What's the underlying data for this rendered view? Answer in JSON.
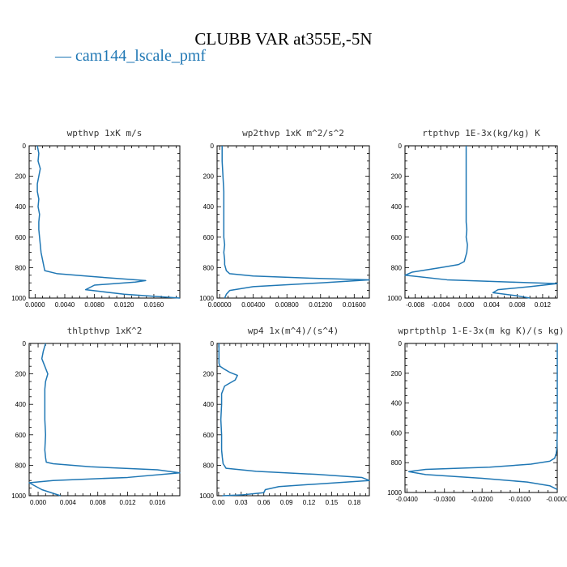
{
  "page": {
    "title": "CLUBB VAR at355E,-5N",
    "legend": "— cam144_lscale_pmf",
    "line_color": "#1f77b4"
  },
  "chart_data": [
    {
      "type": "line",
      "title": "wpthvp   1xK m/s",
      "xlim": [
        -0.0008,
        0.0195
      ],
      "ylim": [
        1000,
        0
      ],
      "xticks": [
        0.0,
        0.004,
        0.008,
        0.012,
        0.016
      ],
      "xtick_labels": [
        "0.0000",
        "0.0040",
        "0.0080",
        "0.0120",
        "0.0160"
      ],
      "yticks": [
        0,
        200,
        400,
        600,
        800,
        1000
      ],
      "ytick_labels": [
        "0",
        "200",
        "400",
        "600",
        "800",
        "1000"
      ],
      "series": [
        {
          "x": [
            0.0003,
            0.0005,
            0.0004,
            0.0007,
            0.0005,
            0.0003,
            0.0003,
            0.0005,
            0.0004,
            0.0006,
            0.0005,
            0.0005,
            0.0006,
            0.0008,
            0.0013,
            0.003,
            0.008,
            0.0149,
            0.0135,
            0.008,
            0.0068,
            0.012,
            0.0195
          ],
          "y": [
            0,
            50,
            100,
            150,
            200,
            250,
            300,
            350,
            400,
            450,
            500,
            550,
            600,
            700,
            820,
            840,
            860,
            885,
            895,
            915,
            945,
            975,
            1000
          ]
        }
      ]
    },
    {
      "type": "line",
      "title": "wp2thvp   1xK m^2/s^2",
      "xlim": [
        -0.0003,
        0.0178
      ],
      "ylim": [
        1000,
        0
      ],
      "xticks": [
        0.0,
        0.004,
        0.008,
        0.012,
        0.016
      ],
      "xtick_labels": [
        "0.00000",
        "0.00400",
        "0.00800",
        "0.01200",
        "0.01600"
      ],
      "yticks": [
        0,
        200,
        400,
        600,
        800,
        1000
      ],
      "ytick_labels": [
        "0",
        "200",
        "400",
        "600",
        "800",
        "1000"
      ],
      "series": [
        {
          "x": [
            0.0003,
            0.0003,
            0.0004,
            0.0005,
            0.0005,
            0.0005,
            0.0005,
            0.0006,
            0.0005,
            0.0006,
            0.0006,
            0.0008,
            0.0012,
            0.004,
            0.011,
            0.0178,
            0.012,
            0.004,
            0.0012,
            0.0008,
            0.0006
          ],
          "y": [
            0,
            100,
            200,
            300,
            400,
            500,
            600,
            650,
            700,
            750,
            780,
            820,
            840,
            855,
            870,
            880,
            900,
            925,
            950,
            975,
            1000
          ]
        }
      ]
    },
    {
      "type": "line",
      "title": "rtpthvp   1E-3x(kg/kg) K",
      "xlim": [
        -0.0096,
        0.0143
      ],
      "ylim": [
        1000,
        0
      ],
      "xticks": [
        -0.008,
        -0.004,
        0.0,
        0.004,
        0.008,
        0.012
      ],
      "xtick_labels": [
        "-0.008",
        "-0.004",
        "0.000",
        "0.004",
        "0.008",
        "0.012"
      ],
      "yticks": [
        0,
        200,
        400,
        600,
        800,
        1000
      ],
      "ytick_labels": [
        "0",
        "200",
        "400",
        "600",
        "800",
        "1000"
      ],
      "series": [
        {
          "x": [
            0.0,
            0.0,
            0.0,
            0.0,
            0.0001,
            0.0,
            0.0002,
            0.0001,
            -0.0003,
            -0.0012,
            -0.004,
            -0.0085,
            -0.0096,
            -0.003,
            0.007,
            0.0143,
            0.01,
            0.005,
            0.0042,
            0.008,
            0.01
          ],
          "y": [
            0,
            200,
            400,
            500,
            550,
            600,
            650,
            700,
            760,
            780,
            800,
            830,
            850,
            880,
            895,
            905,
            925,
            945,
            965,
            985,
            1000
          ]
        }
      ]
    },
    {
      "type": "line",
      "title": "thlpthvp   1xK^2",
      "xlim": [
        -0.0012,
        0.019
      ],
      "ylim": [
        1000,
        0
      ],
      "xticks": [
        0.0,
        0.004,
        0.008,
        0.012,
        0.016
      ],
      "xtick_labels": [
        "0.000",
        "0.004",
        "0.008",
        "0.012",
        "0.016"
      ],
      "yticks": [
        0,
        200,
        400,
        600,
        800,
        1000
      ],
      "ytick_labels": [
        "0",
        "200",
        "400",
        "600",
        "800",
        "1000"
      ],
      "series": [
        {
          "x": [
            0.001,
            0.0007,
            0.0005,
            0.0009,
            0.0013,
            0.001,
            0.0009,
            0.0009,
            0.0009,
            0.001,
            0.0009,
            0.001,
            0.0011,
            0.002,
            0.007,
            0.016,
            0.019,
            0.012,
            0.002,
            -0.0012,
            0.0005,
            0.003
          ],
          "y": [
            0,
            50,
            100,
            150,
            200,
            250,
            300,
            400,
            500,
            600,
            700,
            750,
            780,
            790,
            810,
            830,
            850,
            880,
            900,
            915,
            960,
            1000
          ]
        }
      ]
    },
    {
      "type": "line",
      "title": "wp4   1x(m^4)/(s^4)",
      "xlim": [
        -0.002,
        0.2
      ],
      "ylim": [
        1000,
        0
      ],
      "xticks": [
        0.0,
        0.03,
        0.06,
        0.09,
        0.12,
        0.15,
        0.18
      ],
      "xtick_labels": [
        "0.00",
        "0.03",
        "0.06",
        "0.09",
        "0.12",
        "0.15",
        "0.18"
      ],
      "yticks": [
        0,
        200,
        400,
        600,
        800,
        1000
      ],
      "ytick_labels": [
        "0",
        "200",
        "400",
        "600",
        "800",
        "1000"
      ],
      "series": [
        {
          "x": [
            0.0005,
            0.0005,
            0.002,
            0.008,
            0.015,
            0.025,
            0.022,
            0.008,
            0.004,
            0.004,
            0.003,
            0.004,
            0.004,
            0.005,
            0.006,
            0.01,
            0.05,
            0.13,
            0.19,
            0.2,
            0.14,
            0.08,
            0.062,
            0.06,
            0.03,
            0.005
          ],
          "y": [
            0,
            130,
            150,
            170,
            190,
            210,
            240,
            280,
            330,
            400,
            500,
            600,
            700,
            750,
            790,
            820,
            840,
            860,
            880,
            900,
            920,
            940,
            960,
            980,
            995,
            1000
          ]
        }
      ]
    },
    {
      "type": "line",
      "title": "wprtpthlp   1-E-3x(m kg K)/(s kg)",
      "xlim": [
        -0.0405,
        0.0
      ],
      "ylim": [
        1000,
        0
      ],
      "xticks": [
        -0.04,
        -0.03,
        -0.02,
        -0.01,
        0.0
      ],
      "xtick_labels": [
        "-0.0400",
        "-0.0300",
        "-0.0200",
        "-0.0100",
        "-0.0000"
      ],
      "yticks": [
        0,
        200,
        400,
        600,
        800,
        1000
      ],
      "ytick_labels": [
        "0",
        "200",
        "400",
        "600",
        "800",
        "1000"
      ],
      "series": [
        {
          "x": [
            0.0,
            0.0,
            -0.0001,
            -0.0003,
            -0.0007,
            -0.002,
            -0.007,
            -0.018,
            -0.035,
            -0.0395,
            -0.035,
            -0.02,
            -0.008,
            -0.002,
            0.0
          ],
          "y": [
            0,
            600,
            700,
            740,
            770,
            790,
            810,
            830,
            845,
            860,
            880,
            905,
            930,
            955,
            980
          ]
        }
      ]
    }
  ]
}
